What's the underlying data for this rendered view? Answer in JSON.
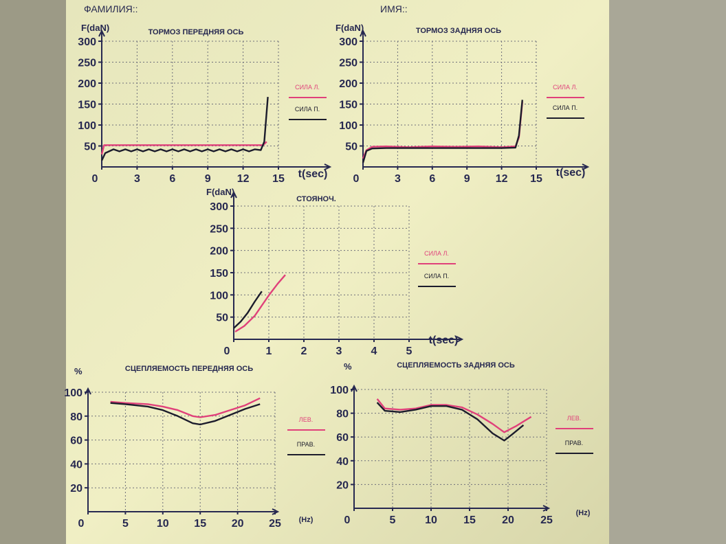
{
  "header": {
    "surname": "ФАМИЛИЯ::",
    "name": "ИМЯ::"
  },
  "chart_data": [
    {
      "type": "line",
      "title": "ТОРМОЗ ПЕРЕДНЯЯ ОСЬ",
      "ylabel": "F(daN)",
      "xlabel": "t(sec)",
      "xlim": [
        0,
        15
      ],
      "xticks": [
        0,
        3,
        6,
        9,
        12,
        15
      ],
      "ylim": [
        0,
        300
      ],
      "yticks": [
        50,
        100,
        150,
        200,
        250,
        300
      ],
      "grid": true,
      "legend": "right",
      "series": [
        {
          "name": "СИЛА Л.",
          "color": "#e0407a",
          "x": [
            0,
            0.2,
            13.7,
            14.0
          ],
          "values": [
            30,
            52,
            52,
            60
          ]
        },
        {
          "name": "СИЛА П.",
          "color": "#1c1c2c",
          "x": [
            0,
            0.3,
            1,
            1.5,
            2,
            2.5,
            3,
            3.5,
            4,
            4.5,
            5,
            5.5,
            6,
            6.5,
            7,
            7.5,
            8,
            8.5,
            9,
            9.5,
            10,
            10.5,
            11,
            11.5,
            12,
            12.5,
            13,
            13.5,
            13.8,
            14.1
          ],
          "values": [
            15,
            33,
            42,
            37,
            42,
            37,
            42,
            37,
            42,
            37,
            42,
            37,
            42,
            37,
            42,
            37,
            42,
            37,
            42,
            37,
            42,
            37,
            42,
            37,
            42,
            37,
            42,
            40,
            60,
            167
          ]
        }
      ]
    },
    {
      "type": "line",
      "title": "ТОРМОЗ ЗАДНЯЯ ОСЬ",
      "ylabel": "F(daN)",
      "xlabel": "t(sec)",
      "xlim": [
        0,
        15
      ],
      "xticks": [
        0,
        3,
        6,
        9,
        12,
        15
      ],
      "ylim": [
        0,
        300
      ],
      "yticks": [
        50,
        100,
        150,
        200,
        250,
        300
      ],
      "grid": true,
      "legend": "right",
      "series": [
        {
          "name": "СИЛА Л.",
          "color": "#e0407a",
          "x": [
            0,
            0.3,
            0.8,
            2,
            4,
            6,
            8,
            10,
            12,
            13.2,
            13.5,
            13.8
          ],
          "values": [
            20,
            40,
            48,
            49,
            47,
            49,
            48,
            49,
            47,
            49,
            70,
            155
          ]
        },
        {
          "name": "СИЛА П.",
          "color": "#1c1c2c",
          "x": [
            0,
            0.3,
            0.8,
            2,
            4,
            6,
            8,
            10,
            12,
            13.2,
            13.5,
            13.8
          ],
          "values": [
            10,
            38,
            44,
            45,
            45,
            45,
            45,
            45,
            45,
            46,
            75,
            160
          ]
        }
      ]
    },
    {
      "type": "line",
      "title": "СТОЯНОЧ.",
      "ylabel": "F(daN)",
      "xlabel": "t(sec)",
      "xlim": [
        0,
        5
      ],
      "xticks": [
        0,
        1,
        2,
        3,
        4,
        5
      ],
      "ylim": [
        0,
        300
      ],
      "yticks": [
        50,
        100,
        150,
        200,
        250,
        300
      ],
      "grid": true,
      "legend": "right",
      "series": [
        {
          "name": "СИЛА Л.",
          "color": "#e0407a",
          "x": [
            0.04,
            0.3,
            0.6,
            1,
            1.25,
            1.47
          ],
          "values": [
            17,
            30,
            53,
            99,
            125,
            145
          ]
        },
        {
          "name": "СИЛА П.",
          "color": "#1c1c2c",
          "x": [
            0,
            0.2,
            0.4,
            0.6,
            0.8
          ],
          "values": [
            25,
            40,
            60,
            85,
            108
          ]
        }
      ]
    },
    {
      "type": "line",
      "title": "СЦЕПЛЯЕМОСТЬ ПЕРЕДНЯЯ ОСЬ",
      "ylabel": "%",
      "xlabel": "(Hz)",
      "xlim": [
        0,
        25
      ],
      "xticks": [
        0,
        5,
        10,
        15,
        20,
        25
      ],
      "ylim": [
        0,
        100
      ],
      "yticks": [
        20,
        40,
        60,
        80,
        100
      ],
      "grid": true,
      "legend": "right",
      "series": [
        {
          "name": "ЛЕВ.",
          "color": "#e0407a",
          "x": [
            3,
            5,
            8,
            10,
            12,
            14,
            15,
            17,
            19,
            21,
            23
          ],
          "values": [
            92,
            91,
            90,
            88,
            85,
            80,
            79,
            81,
            85,
            89,
            95
          ]
        },
        {
          "name": "ПРАВ.",
          "color": "#1c1c2c",
          "x": [
            3,
            5,
            8,
            10,
            12,
            14,
            15,
            17,
            19,
            21,
            23
          ],
          "values": [
            91,
            90,
            88,
            85,
            80,
            74,
            73,
            76,
            81,
            86,
            90
          ]
        }
      ]
    },
    {
      "type": "line",
      "title": "СЦЕПЛЯЕМОСТЬ ЗАДНЯЯ ОСЬ",
      "ylabel": "%",
      "xlabel": "(Hz)",
      "xlim": [
        0,
        25
      ],
      "xticks": [
        0,
        5,
        10,
        15,
        20,
        25
      ],
      "ylim": [
        0,
        100
      ],
      "yticks": [
        20,
        40,
        60,
        80,
        100
      ],
      "grid": true,
      "legend": "right",
      "series": [
        {
          "name": "ЛЕВ.",
          "color": "#e0407a",
          "x": [
            3,
            4,
            6,
            8,
            10,
            12,
            14,
            16,
            18,
            19.5,
            21,
            23
          ],
          "values": [
            92,
            84,
            83,
            84,
            87,
            87,
            85,
            79,
            71,
            64,
            69,
            77
          ]
        },
        {
          "name": "ПРАВ.",
          "color": "#1c1c2c",
          "x": [
            3,
            4,
            6,
            8,
            10,
            12,
            14,
            16,
            18,
            19.5,
            20.5,
            22
          ],
          "values": [
            89,
            82,
            81,
            83,
            86,
            86,
            83,
            75,
            63,
            57,
            62,
            70
          ]
        }
      ]
    }
  ]
}
